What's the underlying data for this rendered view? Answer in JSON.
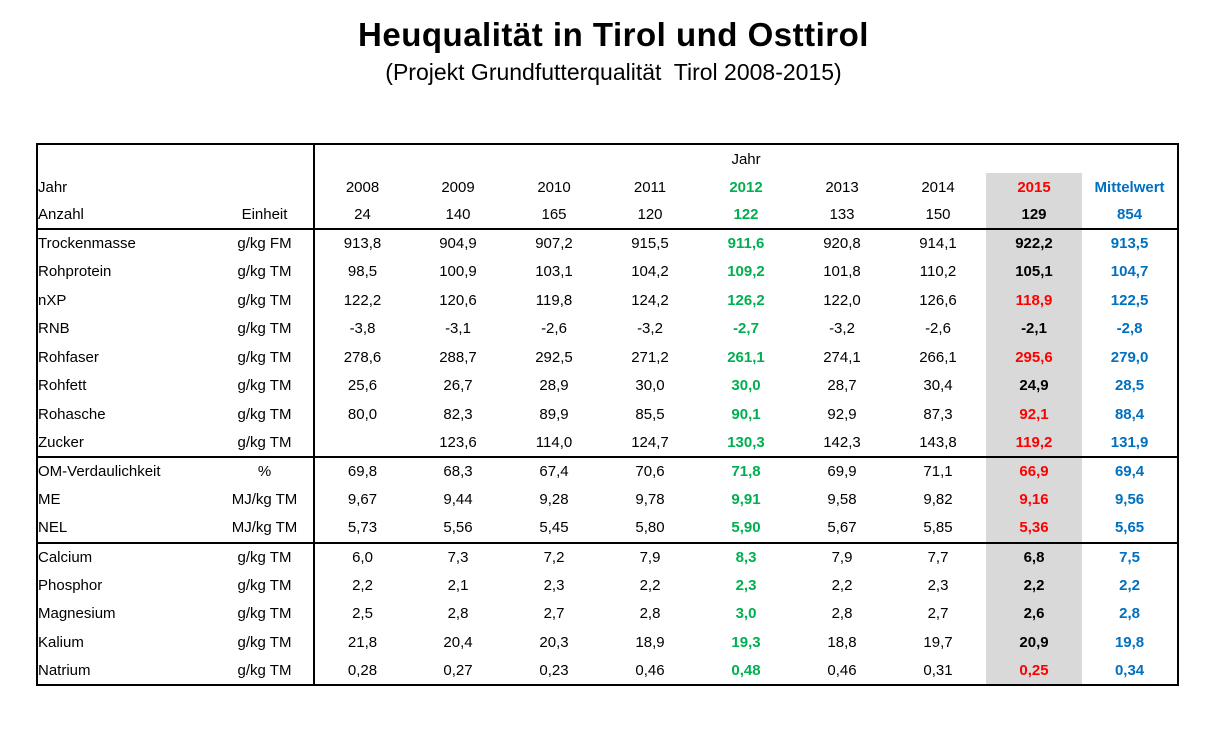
{
  "title": "Heuqualität in Tirol und Osttirol",
  "subtitle": "(Projekt Grundfutterqualität  Tirol 2008-2015)",
  "colors": {
    "highlight_green": "#00B050",
    "highlight_red": "#FF0000",
    "mean_blue": "#0070C0",
    "column_2015_background": "#D9D9D9"
  },
  "table": {
    "span_header": "Jahr",
    "row_header_label": "Jahr",
    "row_header2_label": "Anzahl",
    "unit_header": "Einheit",
    "years": [
      "2008",
      "2009",
      "2010",
      "2011",
      "2012",
      "2013",
      "2014",
      "2015",
      "Mittelwert"
    ],
    "counts": [
      "24",
      "140",
      "165",
      "120",
      "122",
      "133",
      "150",
      "129",
      "854"
    ],
    "groups": [
      {
        "rows": [
          {
            "label": "Trockenmasse",
            "unit": "g/kg FM",
            "h": "black",
            "values": [
              "913,8",
              "904,9",
              "907,2",
              "915,5",
              "911,6",
              "920,8",
              "914,1",
              "922,2",
              "913,5"
            ]
          },
          {
            "label": "Rohprotein",
            "unit": "g/kg TM",
            "h": "black",
            "values": [
              "98,5",
              "100,9",
              "103,1",
              "104,2",
              "109,2",
              "101,8",
              "110,2",
              "105,1",
              "104,7"
            ]
          },
          {
            "label": "nXP",
            "unit": "g/kg TM",
            "h": "red",
            "values": [
              "122,2",
              "120,6",
              "119,8",
              "124,2",
              "126,2",
              "122,0",
              "126,6",
              "118,9",
              "122,5"
            ]
          },
          {
            "label": "RNB",
            "unit": "g/kg TM",
            "h": "black",
            "values": [
              "-3,8",
              "-3,1",
              "-2,6",
              "-3,2",
              "-2,7",
              "-3,2",
              "-2,6",
              "-2,1",
              "-2,8"
            ]
          },
          {
            "label": "Rohfaser",
            "unit": "g/kg TM",
            "h": "red",
            "values": [
              "278,6",
              "288,7",
              "292,5",
              "271,2",
              "261,1",
              "274,1",
              "266,1",
              "295,6",
              "279,0"
            ]
          },
          {
            "label": "Rohfett",
            "unit": "g/kg TM",
            "h": "black",
            "values": [
              "25,6",
              "26,7",
              "28,9",
              "30,0",
              "30,0",
              "28,7",
              "30,4",
              "24,9",
              "28,5"
            ]
          },
          {
            "label": "Rohasche",
            "unit": "g/kg TM",
            "h": "red",
            "values": [
              "80,0",
              "82,3",
              "89,9",
              "85,5",
              "90,1",
              "92,9",
              "87,3",
              "92,1",
              "88,4"
            ]
          },
          {
            "label": "Zucker",
            "unit": "g/kg TM",
            "h": "red",
            "values": [
              "",
              "123,6",
              "114,0",
              "124,7",
              "130,3",
              "142,3",
              "143,8",
              "119,2",
              "131,9"
            ]
          }
        ]
      },
      {
        "rows": [
          {
            "label": "OM-Verdaulichkeit",
            "unit": "%",
            "h": "red",
            "values": [
              "69,8",
              "68,3",
              "67,4",
              "70,6",
              "71,8",
              "69,9",
              "71,1",
              "66,9",
              "69,4"
            ]
          },
          {
            "label": "ME",
            "unit": "MJ/kg TM",
            "h": "red",
            "values": [
              "9,67",
              "9,44",
              "9,28",
              "9,78",
              "9,91",
              "9,58",
              "9,82",
              "9,16",
              "9,56"
            ]
          },
          {
            "label": "NEL",
            "unit": "MJ/kg TM",
            "h": "red",
            "values": [
              "5,73",
              "5,56",
              "5,45",
              "5,80",
              "5,90",
              "5,67",
              "5,85",
              "5,36",
              "5,65"
            ]
          }
        ]
      },
      {
        "rows": [
          {
            "label": "Calcium",
            "unit": "g/kg TM",
            "h": "black",
            "values": [
              "6,0",
              "7,3",
              "7,2",
              "7,9",
              "8,3",
              "7,9",
              "7,7",
              "6,8",
              "7,5"
            ]
          },
          {
            "label": "Phosphor",
            "unit": "g/kg TM",
            "h": "black",
            "values": [
              "2,2",
              "2,1",
              "2,3",
              "2,2",
              "2,3",
              "2,2",
              "2,3",
              "2,2",
              "2,2"
            ]
          },
          {
            "label": "Magnesium",
            "unit": "g/kg TM",
            "h": "black",
            "values": [
              "2,5",
              "2,8",
              "2,7",
              "2,8",
              "3,0",
              "2,8",
              "2,7",
              "2,6",
              "2,8"
            ]
          },
          {
            "label": "Kalium",
            "unit": "g/kg TM",
            "h": "black",
            "values": [
              "21,8",
              "20,4",
              "20,3",
              "18,9",
              "19,3",
              "18,8",
              "19,7",
              "20,9",
              "19,8"
            ]
          },
          {
            "label": "Natrium",
            "unit": "g/kg TM",
            "h": "red",
            "values": [
              "0,28",
              "0,27",
              "0,23",
              "0,46",
              "0,48",
              "0,46",
              "0,31",
              "0,25",
              "0,34"
            ]
          }
        ]
      }
    ]
  }
}
